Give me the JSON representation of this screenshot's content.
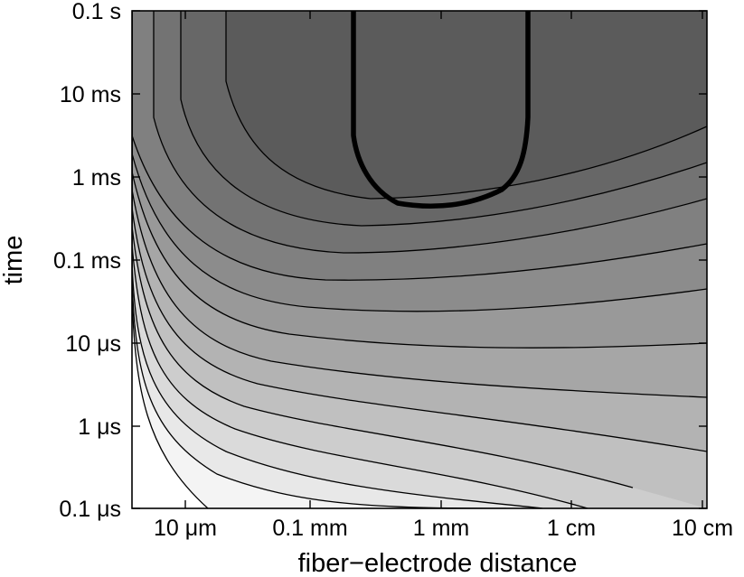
{
  "chart_data": {
    "type": "contour",
    "title": "",
    "xlabel": "fiber−electrode distance",
    "ylabel": "time",
    "x_scale": "log",
    "y_scale": "log",
    "x_range": [
      "5 μm",
      "15 cm"
    ],
    "y_range": [
      "0.1 μs",
      "0.1 s"
    ],
    "x_ticks": [
      "10 μm",
      "0.1 mm",
      "1 mm",
      "1 cm",
      "10 cm"
    ],
    "y_ticks": [
      "0.1 s",
      "10 ms",
      "1 ms",
      "0.1 ms",
      "10 μs",
      "1 μs",
      "0.1 μs"
    ],
    "levels": 11,
    "highlighted_level": "thick black contour enclosing the darkest region (≈1 mm, ≈1 ms and up)",
    "fill_colors_dark_to_light": [
      "#5b5b5b",
      "#676767",
      "#737373",
      "#808080",
      "#8c8c8c",
      "#999999",
      "#a6a6a6",
      "#b3b3b3",
      "#c0c0c0",
      "#cdcdcd",
      "#dadada",
      "#e8e8e8",
      "#f4f4f4",
      "#ffffff"
    ],
    "line_color": "#000000",
    "grid": false,
    "legend": "none"
  }
}
